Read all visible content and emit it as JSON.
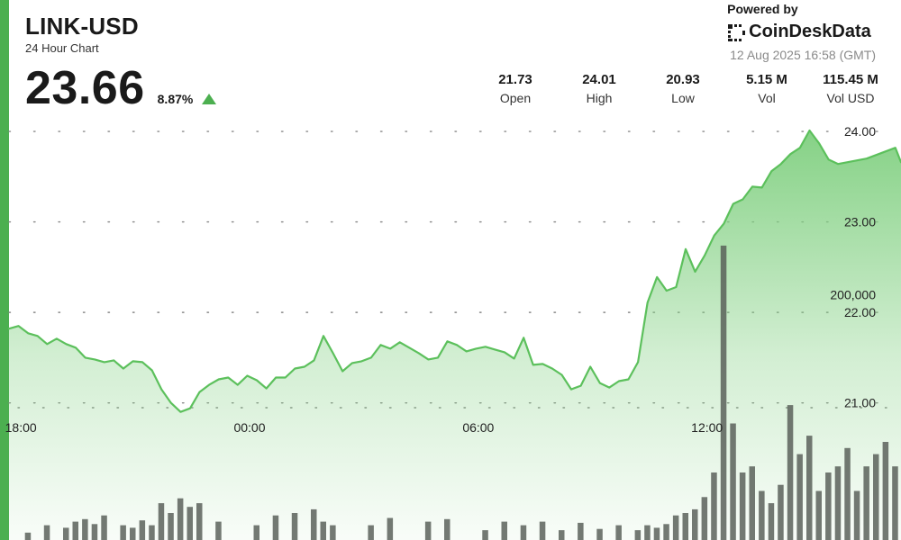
{
  "header": {
    "ticker": "LINK-USD",
    "subtitle": "24 Hour Chart",
    "price": "23.66",
    "change": "8.87%"
  },
  "brand": {
    "powered_by": "Powered by",
    "name": "CoinDeskData",
    "timestamp": "12 Aug 2025 16:58 (GMT)"
  },
  "stats": [
    {
      "value": "21.73",
      "label": "Open"
    },
    {
      "value": "24.01",
      "label": "High"
    },
    {
      "value": "20.93",
      "label": "Low"
    },
    {
      "value": "5.15 M",
      "label": "Vol"
    },
    {
      "value": "115.45 M",
      "label": "Vol USD"
    }
  ],
  "colors": {
    "accent": "#4caf50",
    "line": "#5cc05c",
    "area_top": "#7fcf7f",
    "volume_bar": "#555c55",
    "grid_dot": "#888888"
  },
  "chart_data": [
    {
      "type": "area",
      "title": "",
      "xlabel": "",
      "ylabel": "",
      "x_ticks": [
        {
          "label": "18:00",
          "t": 0.5
        },
        {
          "label": "00:00",
          "t": 6.5
        },
        {
          "label": "06:00",
          "t": 12.5
        },
        {
          "label": "12:00",
          "t": 18.5
        }
      ],
      "x_range": [
        0,
        23.4
      ],
      "y_ticks": [
        21.0,
        22.0,
        23.0,
        24.0
      ],
      "y_tick_labels": [
        "21.00",
        "22.00",
        "23.00",
        "24.00"
      ],
      "ylim": [
        20.4,
        24.1
      ],
      "grid": "dotted horizontal",
      "series": [
        {
          "t": [
            0,
            0.25,
            0.5,
            0.75,
            1.0,
            1.25,
            1.5,
            1.75,
            2.0,
            2.25,
            2.5,
            2.75,
            3.0,
            3.25,
            3.5,
            3.75,
            4.0,
            4.25,
            4.5,
            4.75,
            5.0,
            5.25,
            5.5,
            5.75,
            6.0,
            6.25,
            6.5,
            6.75,
            7.0,
            7.25,
            7.5,
            7.75,
            8.0,
            8.25,
            8.5,
            8.75,
            9.0,
            9.25,
            9.5,
            9.75,
            10.0,
            10.25,
            10.5,
            10.75,
            11.0,
            11.25,
            11.5,
            11.75,
            12.0,
            12.25,
            12.5,
            12.75,
            13.0,
            13.25,
            13.5,
            13.75,
            14.0,
            14.25,
            14.5,
            14.75,
            15.0,
            15.25,
            15.5,
            15.75,
            16.0,
            16.25,
            16.5,
            16.75,
            17.0,
            17.25,
            17.5,
            17.75,
            18.0,
            18.25,
            18.5,
            18.75,
            19.0,
            19.25,
            19.5,
            19.75,
            20.0,
            20.25,
            20.5,
            20.75,
            21.0,
            21.25,
            21.5,
            21.75,
            22.0,
            22.25,
            22.5,
            22.75,
            23.0,
            23.25,
            23.4
          ],
          "y": [
            21.82,
            21.85,
            21.77,
            21.74,
            21.65,
            21.71,
            21.65,
            21.61,
            21.5,
            21.48,
            21.45,
            21.47,
            21.38,
            21.46,
            21.45,
            21.36,
            21.15,
            21.0,
            20.9,
            20.94,
            21.12,
            21.2,
            21.26,
            21.28,
            21.2,
            21.3,
            21.25,
            21.16,
            21.28,
            21.28,
            21.38,
            21.4,
            21.47,
            21.74,
            21.55,
            21.35,
            21.44,
            21.46,
            21.5,
            21.64,
            21.6,
            21.67,
            21.61,
            21.55,
            21.48,
            21.5,
            21.68,
            21.64,
            21.57,
            21.6,
            21.62,
            21.59,
            21.56,
            21.49,
            21.72,
            21.42,
            21.43,
            21.38,
            21.31,
            21.15,
            21.19,
            21.4,
            21.22,
            21.17,
            21.24,
            21.26,
            21.45,
            22.11,
            22.39,
            22.24,
            22.28,
            22.7,
            22.45,
            22.63,
            22.85,
            22.98,
            23.2,
            23.25,
            23.39,
            23.38,
            23.56,
            23.64,
            23.75,
            23.82,
            24.01,
            23.87,
            23.69,
            23.64,
            23.66,
            23.68,
            23.7,
            23.74,
            23.78,
            23.82,
            23.66
          ]
        }
      ]
    },
    {
      "type": "bar",
      "title": "",
      "y_ticks": [
        200000
      ],
      "y_tick_labels": [
        "200,000"
      ],
      "ylim": [
        0,
        270000
      ],
      "series": [
        {
          "name": "",
          "t": [
            0.5,
            1.0,
            1.5,
            1.75,
            2.0,
            2.25,
            2.5,
            3.0,
            3.25,
            3.5,
            3.75,
            4.0,
            4.25,
            4.5,
            4.75,
            5.0,
            5.5,
            6.5,
            7.0,
            7.5,
            8.0,
            8.25,
            8.5,
            9.5,
            10.0,
            11.0,
            11.5,
            12.5,
            13.0,
            13.5,
            14.0,
            14.5,
            15.0,
            15.5,
            16.0,
            16.5,
            16.75,
            17.0,
            17.25,
            17.5,
            17.75,
            18.0,
            18.25,
            18.5,
            18.75,
            19.0,
            19.25,
            19.5,
            19.75,
            20.0,
            20.25,
            20.5,
            20.75,
            21.0,
            21.25,
            21.5,
            21.75,
            22.0,
            22.25,
            22.5,
            22.75,
            23.0,
            23.25
          ],
          "values": [
            6000,
            12000,
            10000,
            15000,
            17000,
            13000,
            20000,
            12000,
            10000,
            16000,
            12000,
            30000,
            22000,
            34000,
            27000,
            30000,
            15000,
            12000,
            20000,
            22000,
            25000,
            15000,
            12000,
            12000,
            18000,
            15000,
            17000,
            8000,
            15000,
            12000,
            15000,
            8000,
            14000,
            9000,
            12000,
            8000,
            12000,
            10000,
            13000,
            20000,
            22000,
            25000,
            35000,
            55000,
            240000,
            95000,
            55000,
            60000,
            40000,
            30000,
            45000,
            110000,
            70000,
            85000,
            40000,
            55000,
            60000,
            75000,
            40000,
            60000,
            70000,
            80000,
            60000
          ]
        }
      ]
    }
  ]
}
